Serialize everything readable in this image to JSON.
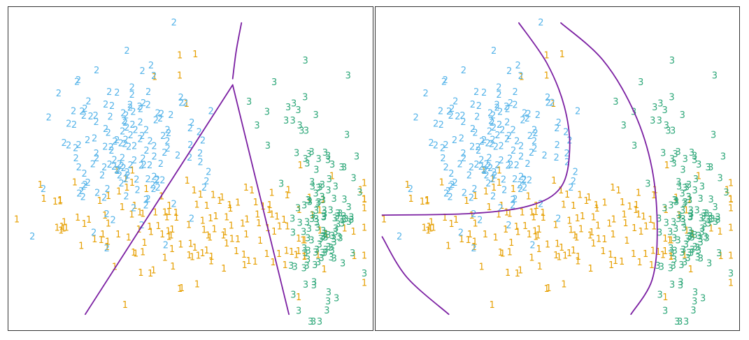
{
  "figure": {
    "boundary_color": "#7B1FA2"
  },
  "chart_data": [
    {
      "type": "scatter",
      "panel": "left",
      "title": "",
      "xlabel": "",
      "ylabel": "",
      "xlim": [
        0,
        10
      ],
      "ylim": [
        0,
        10
      ],
      "grid": false,
      "legend": "none",
      "class_colors": {
        "1": "#E69F00",
        "2": "#56B4E9",
        "3": "#2FA87A"
      },
      "clusters": [
        {
          "label": "1",
          "seed": 11,
          "groups": [
            {
              "cx": 5.8,
              "cy": 3.0,
              "sx": 1.9,
              "sy": 0.85,
              "n": 150
            },
            {
              "cx": 2.0,
              "cy": 3.4,
              "sx": 0.9,
              "sy": 0.5,
              "n": 22
            },
            {
              "cx": 4.6,
              "cy": 8.7,
              "sx": 0.4,
              "sy": 0.9,
              "n": 5
            }
          ]
        },
        {
          "label": "2",
          "seed": 23,
          "groups": [
            {
              "cx": 3.2,
              "cy": 5.6,
              "sx": 1.05,
              "sy": 1.25,
              "n": 160
            }
          ]
        },
        {
          "label": "3",
          "seed": 37,
          "groups": [
            {
              "cx": 8.8,
              "cy": 3.5,
              "sx": 0.45,
              "sy": 1.6,
              "n": 130
            },
            {
              "cx": 7.8,
              "cy": 6.6,
              "sx": 0.5,
              "sy": 0.5,
              "n": 10
            }
          ]
        }
      ],
      "boundaries": [
        {
          "points": [
            [
              2.0,
              0.3
            ],
            [
              6.2,
              7.7
            ]
          ]
        },
        {
          "points": [
            [
              6.2,
              7.7
            ],
            [
              7.8,
              0.3
            ]
          ]
        },
        {
          "points": [
            [
              6.2,
              7.9
            ],
            [
              6.3,
              8.8
            ],
            [
              6.45,
              9.7
            ]
          ]
        }
      ]
    },
    {
      "type": "scatter",
      "panel": "right",
      "title": "",
      "xlabel": "",
      "ylabel": "",
      "xlim": [
        0,
        10
      ],
      "ylim": [
        0,
        10
      ],
      "grid": false,
      "legend": "none",
      "class_colors": {
        "1": "#E69F00",
        "2": "#56B4E9",
        "3": "#2FA87A"
      },
      "clusters": [
        {
          "label": "1",
          "seed": 11,
          "groups": [
            {
              "cx": 5.8,
              "cy": 3.0,
              "sx": 1.9,
              "sy": 0.85,
              "n": 150
            },
            {
              "cx": 2.0,
              "cy": 3.4,
              "sx": 0.9,
              "sy": 0.5,
              "n": 22
            },
            {
              "cx": 4.6,
              "cy": 8.7,
              "sx": 0.4,
              "sy": 0.9,
              "n": 5
            }
          ]
        },
        {
          "label": "2",
          "seed": 23,
          "groups": [
            {
              "cx": 3.2,
              "cy": 5.6,
              "sx": 1.05,
              "sy": 1.25,
              "n": 160
            }
          ]
        },
        {
          "label": "3",
          "seed": 37,
          "groups": [
            {
              "cx": 8.8,
              "cy": 3.5,
              "sx": 0.45,
              "sy": 1.6,
              "n": 130
            },
            {
              "cx": 7.8,
              "cy": 6.6,
              "sx": 0.5,
              "sy": 0.5,
              "n": 10
            }
          ]
        }
      ],
      "boundaries": [
        {
          "points": [
            [
              3.9,
              9.7
            ],
            [
              4.7,
              8.4
            ],
            [
              5.2,
              7.0
            ],
            [
              5.35,
              5.6
            ],
            [
              5.1,
              4.4
            ],
            [
              4.2,
              3.8
            ],
            [
              2.5,
              3.55
            ],
            [
              0.0,
              3.5
            ]
          ]
        },
        {
          "points": [
            [
              5.1,
              9.7
            ],
            [
              6.3,
              8.5
            ],
            [
              7.2,
              6.8
            ],
            [
              7.7,
              5.0
            ],
            [
              7.85,
              3.0
            ],
            [
              7.7,
              1.4
            ],
            [
              7.1,
              0.3
            ]
          ]
        },
        {
          "points": [
            [
              0.0,
              2.8
            ],
            [
              0.7,
              1.5
            ],
            [
              1.9,
              0.3
            ]
          ]
        }
      ]
    }
  ]
}
